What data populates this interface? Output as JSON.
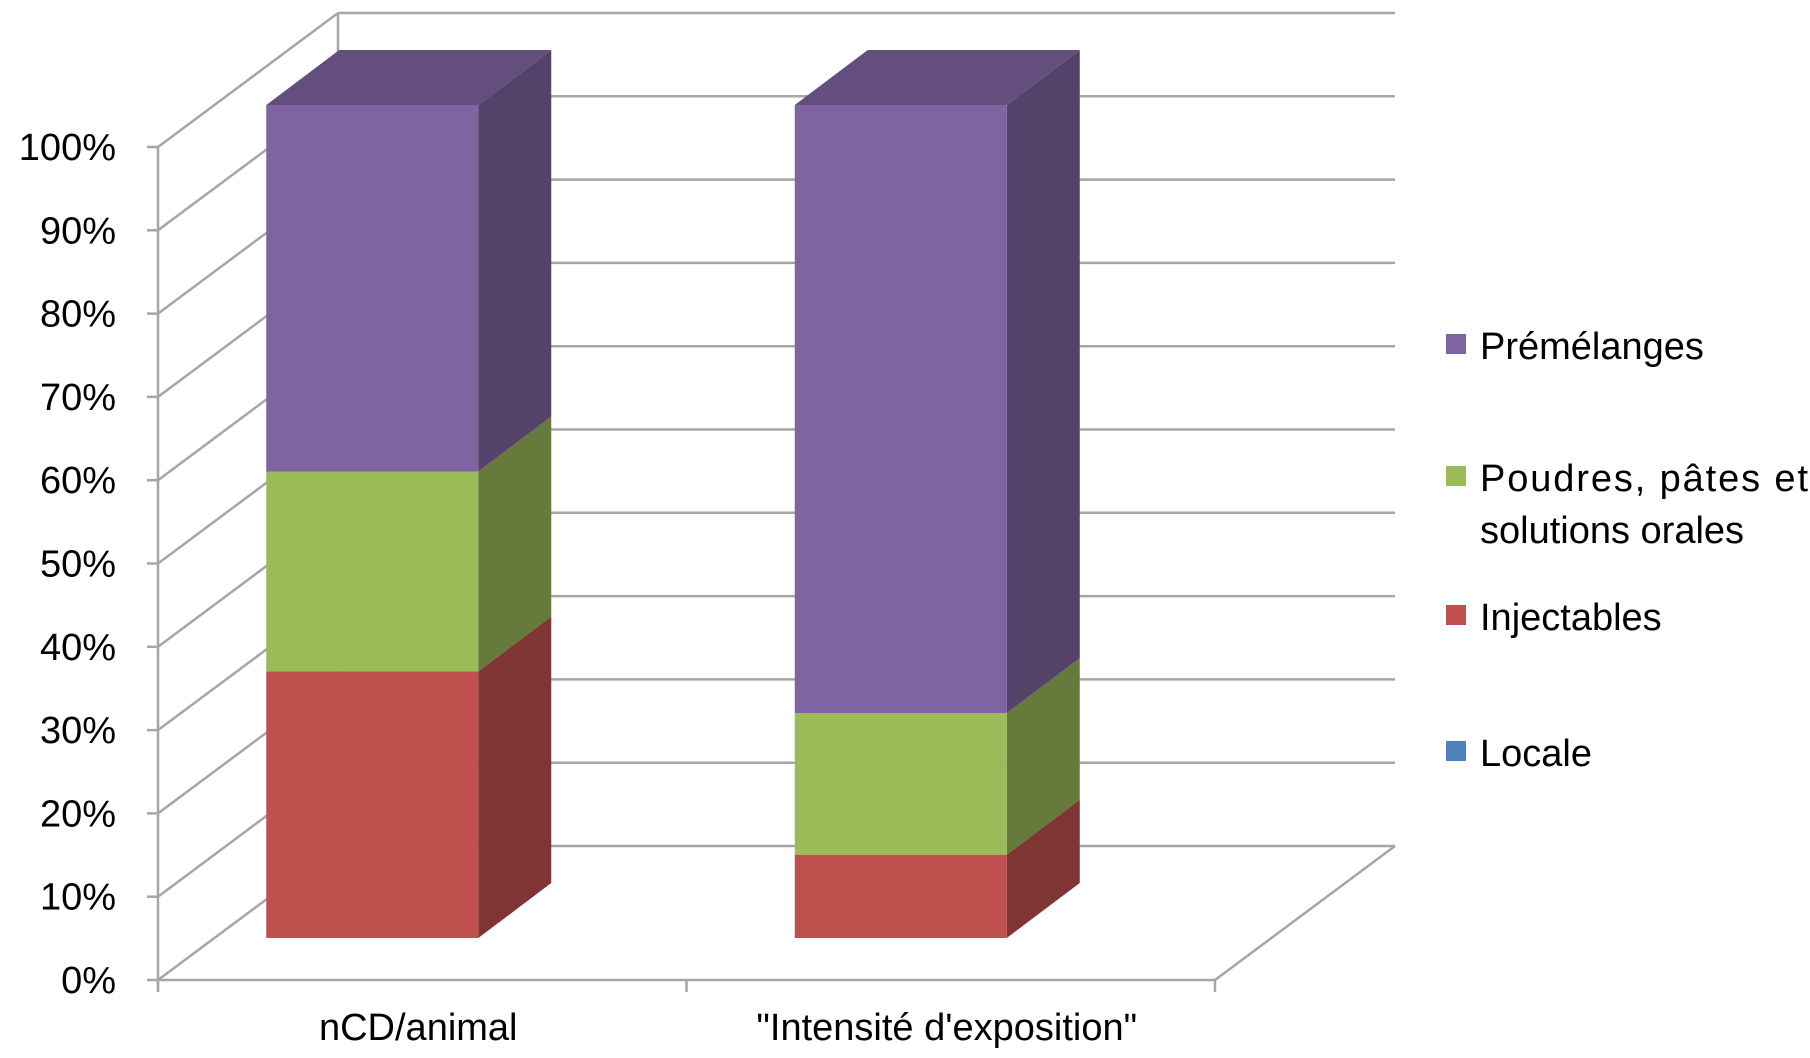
{
  "chart_data": {
    "type": "bar",
    "stacked": true,
    "percent": true,
    "three_d": true,
    "categories": [
      "nCD/animal",
      "\"Intensité d'exposition\""
    ],
    "series": [
      {
        "name": "Locale",
        "values": [
          0,
          0
        ],
        "color": "#4f81bd"
      },
      {
        "name": "Injectables",
        "values": [
          32,
          10
        ],
        "color": "#c0504d"
      },
      {
        "name": "Poudres, pâtes et solutions orales",
        "values": [
          24,
          17
        ],
        "color": "#9bbb59"
      },
      {
        "name": "Prémélanges",
        "values": [
          44,
          73
        ],
        "color": "#8064a2"
      }
    ],
    "ylim": [
      0,
      100
    ],
    "yticks": [
      "0%",
      "10%",
      "20%",
      "30%",
      "40%",
      "50%",
      "60%",
      "70%",
      "80%",
      "90%",
      "100%"
    ],
    "grid": true,
    "legend_position": "right",
    "legend_order": [
      3,
      2,
      1,
      0
    ],
    "legend_lines": [
      [
        "Prémélanges"
      ],
      [
        "Poudres, pâtes et",
        "solutions orales"
      ],
      [
        "Injectables"
      ],
      [
        "Locale"
      ]
    ]
  }
}
